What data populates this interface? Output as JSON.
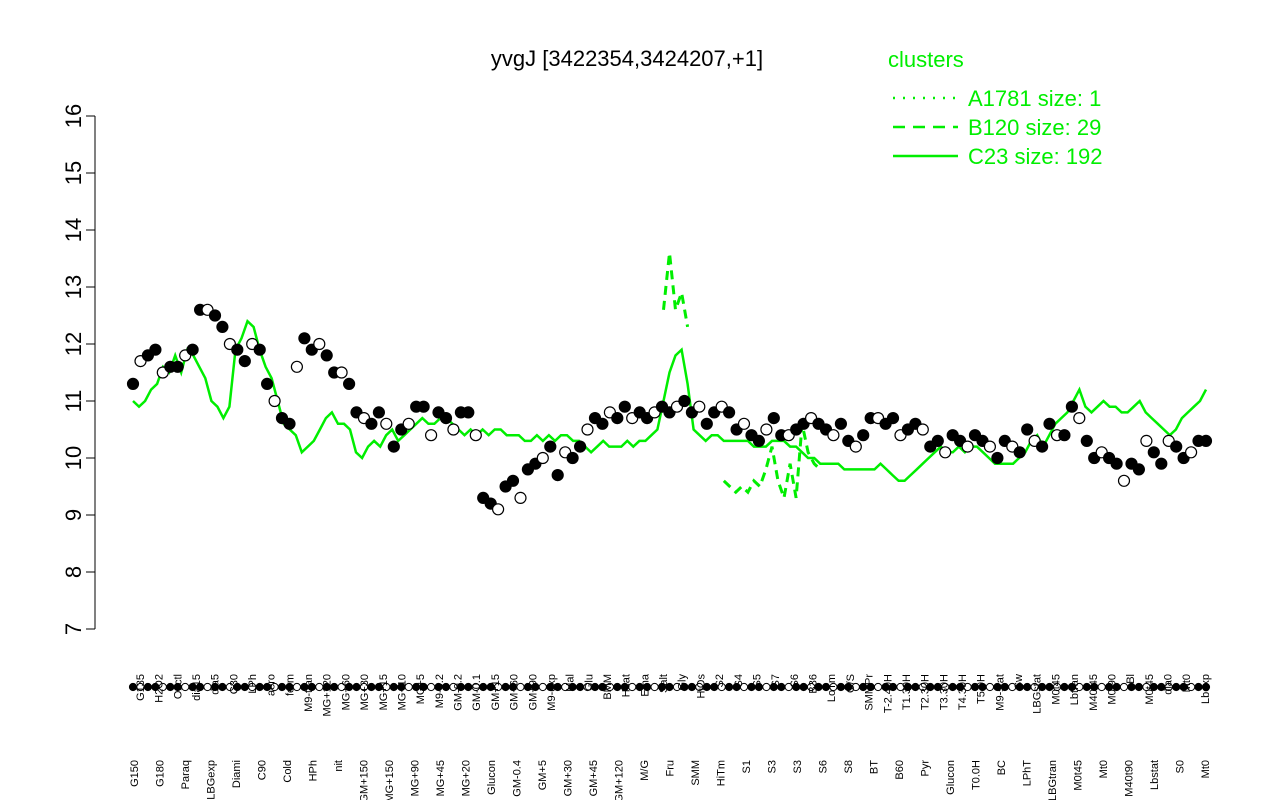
{
  "chart_data": {
    "type": "line",
    "title": "yvgJ [3422354,3424207,+1]",
    "xlabel": "",
    "ylabel": "",
    "ylim": [
      7,
      16
    ],
    "yticks": [
      7,
      8,
      9,
      10,
      11,
      12,
      13,
      14,
      15,
      16
    ],
    "grid": false,
    "legend": {
      "title": "clusters",
      "position": "top-right",
      "entries": [
        {
          "label": "A1781 size: 1",
          "style": "dotted"
        },
        {
          "label": "B120 size: 29",
          "style": "dashed"
        },
        {
          "label": "C23 size: 192",
          "style": "solid"
        }
      ]
    },
    "x_tick_labels_top": [
      "G135",
      "H2O2",
      "Oxctl",
      "dia15",
      "dia5",
      "C30",
      "LPh",
      "aero",
      "ferm",
      "M9-tran",
      "MG+120",
      "MG+60",
      "MG+30",
      "MG+15",
      "MG+10",
      "MG+5",
      "M9-0.2",
      "GM-0.2",
      "GM-0.1",
      "GM+15",
      "GM+60",
      "GM+90",
      "M9-exp",
      "Mal",
      "Glu",
      "BMM",
      "Heat",
      "Etha",
      "Salt",
      "Gly",
      "HiOs",
      "S2",
      "S4",
      "S5",
      "S7",
      "S6",
      "B36",
      "LoTm",
      "G/S",
      "SMMPr",
      "T-2.40H",
      "T1.30H",
      "T2.30H",
      "T3.30H",
      "T4.30H",
      "T5.0H",
      "M9-stat",
      "Sw",
      "LBGstat",
      "M0t45",
      "Lbtran",
      "M40t45",
      "M0t90",
      "Bl",
      "M0t45",
      "dia0",
      "Mt0",
      "Lbexp"
    ],
    "x_tick_labels_bottom": [
      "G150",
      "G180",
      "Paraq",
      "LBGexp",
      "Diami",
      "C90",
      "Cold",
      "HPh",
      "nit",
      "GM+150",
      "MG+150",
      "MG+90",
      "MG+45",
      "MG+20",
      "Glucon",
      "GM-0.4",
      "GM+5",
      "GM+30",
      "GM+45",
      "GM+120",
      "M/G",
      "Fru",
      "SMM",
      "HiTm",
      "S1",
      "S3",
      "S3",
      "S6",
      "S8",
      "BT",
      "B60",
      "Pyr",
      "Glucon",
      "T0.0H",
      "BC",
      "LPhT",
      "LBGtran",
      "M0t45",
      "Mt0",
      "M40t90",
      "Lbstat",
      "S0",
      "Mt0"
    ],
    "series": [
      {
        "name": "C23 size: 192",
        "style": "solid",
        "color": "#00ee00",
        "values": [
          11.0,
          10.9,
          11.0,
          11.2,
          11.3,
          11.6,
          11.5,
          11.8,
          11.5,
          11.9,
          11.8,
          11.6,
          11.4,
          11.0,
          10.9,
          10.7,
          10.9,
          11.9,
          12.1,
          12.4,
          12.3,
          11.9,
          11.6,
          11.4,
          11.0,
          10.6,
          10.5,
          10.4,
          10.1,
          10.2,
          10.3,
          10.5,
          10.7,
          10.8,
          10.6,
          10.6,
          10.5,
          10.1,
          10.0,
          10.2,
          10.3,
          10.2,
          10.4,
          10.5,
          10.3,
          10.4,
          10.5,
          10.6,
          10.7,
          10.6,
          10.6,
          10.7,
          10.7,
          10.6,
          10.5,
          10.4,
          10.5,
          10.4,
          10.5,
          10.4,
          10.5,
          10.5,
          10.4,
          10.4,
          10.4,
          10.3,
          10.3,
          10.4,
          10.3,
          10.4,
          10.3,
          10.4,
          10.4,
          10.3,
          10.3,
          10.2,
          10.1,
          10.2,
          10.3,
          10.2,
          10.2,
          10.2,
          10.3,
          10.2,
          10.3,
          10.3,
          10.4,
          10.5,
          11.0,
          11.5,
          11.8,
          11.9,
          11.3,
          10.5,
          10.4,
          10.3,
          10.4,
          10.4,
          10.3,
          10.3,
          10.3,
          10.3,
          10.3,
          10.2,
          10.2,
          10.2,
          10.3,
          10.3,
          10.3,
          10.2,
          10.2,
          10.1,
          10.0,
          10.0,
          9.9,
          9.9,
          9.9,
          9.9,
          9.8,
          9.8,
          9.8,
          9.8,
          9.8,
          9.8,
          9.9,
          9.8,
          9.7,
          9.6,
          9.6,
          9.7,
          9.8,
          9.9,
          10.0,
          10.1,
          10.2,
          10.1,
          10.1,
          10.2,
          10.1,
          10.2,
          10.2,
          10.1,
          10.0,
          9.9,
          9.9,
          9.9,
          9.9,
          10.0,
          10.1,
          10.3,
          10.4,
          10.2,
          10.4,
          10.6,
          10.7,
          10.8,
          11.0,
          11.2,
          10.9,
          10.8,
          10.9,
          11.0,
          10.9,
          10.9,
          10.8,
          10.8,
          10.9,
          11.0,
          10.8,
          10.7,
          10.6,
          10.5,
          10.4,
          10.5,
          10.7,
          10.8,
          10.9,
          11.0,
          11.2
        ]
      },
      {
        "name": "B120 size: 29",
        "style": "dashed",
        "color": "#00ee00",
        "values": [
          null,
          null,
          null,
          null,
          null,
          null,
          null,
          null,
          null,
          null,
          null,
          null,
          null,
          null,
          null,
          null,
          null,
          null,
          null,
          null,
          null,
          null,
          null,
          null,
          null,
          null,
          null,
          null,
          null,
          null,
          null,
          null,
          null,
          null,
          null,
          null,
          null,
          null,
          null,
          null,
          null,
          null,
          null,
          null,
          null,
          null,
          null,
          null,
          null,
          null,
          null,
          null,
          null,
          null,
          null,
          null,
          null,
          null,
          null,
          null,
          null,
          null,
          null,
          null,
          null,
          null,
          null,
          null,
          null,
          null,
          null,
          null,
          null,
          null,
          null,
          null,
          null,
          null,
          null,
          null,
          null,
          null,
          null,
          null,
          null,
          null,
          null,
          null,
          12.6,
          13.6,
          12.6,
          12.9,
          12.3,
          null,
          null,
          null,
          null,
          null,
          9.6,
          9.5,
          9.4,
          9.5,
          9.4,
          9.6,
          9.5,
          9.8,
          10.2,
          9.6,
          9.3,
          9.9,
          9.3,
          10.6,
          10.1,
          9.9,
          9.8,
          null,
          null,
          null,
          null,
          null,
          null,
          null,
          null,
          null,
          null,
          null,
          null,
          null,
          null,
          null,
          null,
          null,
          null,
          null,
          null,
          null,
          null,
          null,
          null,
          null,
          null,
          null,
          null,
          null,
          null,
          null,
          null,
          null,
          null,
          null,
          null,
          null,
          null,
          null,
          null,
          null,
          null,
          null,
          null,
          null,
          null,
          null,
          null,
          null,
          null,
          null,
          null,
          null,
          null,
          null,
          null,
          null,
          null,
          null,
          null,
          null,
          null,
          null,
          null,
          null,
          null,
          null,
          null
        ]
      },
      {
        "name": "points",
        "style": "points",
        "color": "#000000",
        "values": [
          11.3,
          11.7,
          11.8,
          11.9,
          11.5,
          11.6,
          11.6,
          11.8,
          11.9,
          12.6,
          12.6,
          12.5,
          12.3,
          12.0,
          11.9,
          11.7,
          12.0,
          11.9,
          11.3,
          11.0,
          10.7,
          10.6,
          11.6,
          12.1,
          11.9,
          12.0,
          11.8,
          11.5,
          11.5,
          11.3,
          10.8,
          10.7,
          10.6,
          10.8,
          10.6,
          10.2,
          10.5,
          10.6,
          10.9,
          10.9,
          10.4,
          10.8,
          10.7,
          10.5,
          10.8,
          10.8,
          10.4,
          9.3,
          9.2,
          9.1,
          9.5,
          9.6,
          9.3,
          9.8,
          9.9,
          10.0,
          10.2,
          9.7,
          10.1,
          10.0,
          10.2,
          10.5,
          10.7,
          10.6,
          10.8,
          10.7,
          10.9,
          10.7,
          10.8,
          10.7,
          10.8,
          10.9,
          10.8,
          10.9,
          11.0,
          10.8,
          10.9,
          10.6,
          10.8,
          10.9,
          10.8,
          10.5,
          10.6,
          10.4,
          10.3,
          10.5,
          10.7,
          10.4,
          10.4,
          10.5,
          10.6,
          10.7,
          10.6,
          10.5,
          10.4,
          10.6,
          10.3,
          10.2,
          10.4,
          10.7,
          10.7,
          10.6,
          10.7,
          10.4,
          10.5,
          10.6,
          10.5,
          10.2,
          10.3,
          10.1,
          10.4,
          10.3,
          10.2,
          10.4,
          10.3,
          10.2,
          10.0,
          10.3,
          10.2,
          10.1,
          10.5,
          10.3,
          10.2,
          10.6,
          10.4,
          10.4,
          10.9,
          10.7,
          10.3,
          10.0,
          10.1,
          10.0,
          9.9,
          9.6,
          9.9,
          9.8,
          10.3,
          10.1,
          9.9,
          10.3,
          10.2,
          10.0,
          10.1,
          10.3,
          10.3
        ]
      }
    ]
  }
}
